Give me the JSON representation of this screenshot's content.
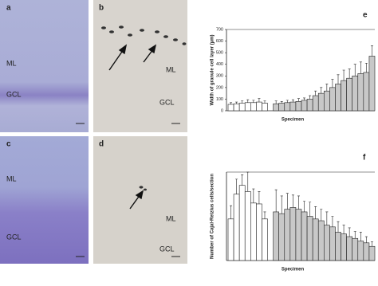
{
  "panels": [
    {
      "letter": "a",
      "labels": [
        "ML",
        "GCL"
      ]
    },
    {
      "letter": "b",
      "labels": [
        "ML",
        "GCL"
      ]
    },
    {
      "letter": "c",
      "labels": [
        "ML",
        "GCL"
      ]
    },
    {
      "letter": "d",
      "labels": [
        "ML",
        "GCL"
      ]
    }
  ],
  "chart_data": [
    {
      "type": "bar",
      "letter": "e",
      "xlabel": "Specimen",
      "ylabel": "Width of granule cell layer (µm)",
      "ylim": [
        0,
        700
      ],
      "yticks": [
        0,
        100,
        200,
        300,
        400,
        500,
        600,
        700
      ],
      "series": [
        {
          "color": "#ffffff",
          "values": [
            55,
            60,
            65,
            70,
            70,
            75,
            65
          ],
          "errors": [
            15,
            15,
            20,
            25,
            20,
            30,
            20
          ]
        },
        {
          "color": "#c8c8c8",
          "values": [
            60,
            65,
            70,
            75,
            80,
            90,
            100,
            130,
            150,
            170,
            200,
            230,
            260,
            280,
            300,
            320,
            330,
            470
          ],
          "errors": [
            25,
            15,
            20,
            20,
            25,
            20,
            30,
            40,
            50,
            60,
            70,
            80,
            90,
            80,
            100,
            100,
            80,
            90
          ]
        }
      ]
    },
    {
      "type": "bar",
      "letter": "f",
      "xlabel": "Specimen",
      "ylabel": "Number of Cajal-Retzius cells/section",
      "ylim": [
        0,
        100
      ],
      "series": [
        {
          "color": "#ffffff",
          "values": [
            47,
            75,
            85,
            78,
            65,
            64,
            47
          ],
          "errors": [
            15,
            17,
            12,
            22,
            16,
            14,
            8
          ]
        },
        {
          "color": "#c8c8c8",
          "values": [
            55,
            53,
            58,
            60,
            58,
            55,
            50,
            47,
            45,
            40,
            38,
            32,
            30,
            27,
            25,
            22,
            20,
            16
          ],
          "errors": [
            25,
            20,
            18,
            14,
            15,
            12,
            16,
            14,
            13,
            15,
            12,
            12,
            10,
            10,
            8,
            10,
            7,
            5
          ]
        }
      ]
    }
  ]
}
